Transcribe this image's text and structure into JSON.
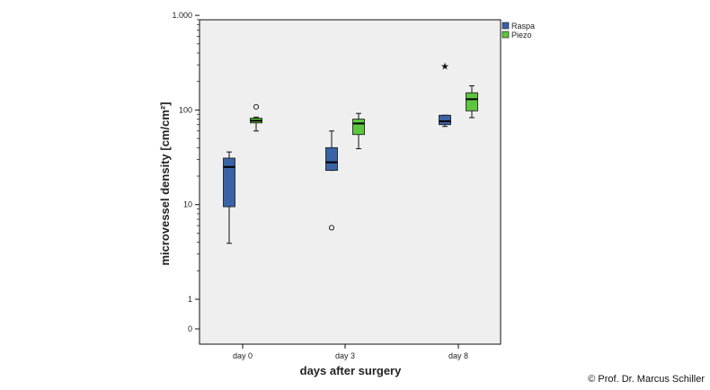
{
  "chart_data": {
    "type": "box",
    "title": "",
    "xlabel": "days after surgery",
    "ylabel": "microvessel density [cm/cm²]",
    "y_scale": "log, with 0 shown below 1",
    "y_ticks": [
      {
        "value": 0,
        "label": "0"
      },
      {
        "value": 1,
        "label": "1"
      },
      {
        "value": 10,
        "label": "10"
      },
      {
        "value": 100,
        "label": "100"
      },
      {
        "value": 1000,
        "label": "1.000"
      }
    ],
    "categories": [
      "day 0",
      "day 3",
      "day 8"
    ],
    "legend": {
      "placement": "top-right, outside plot"
    },
    "grid": false,
    "series": [
      {
        "name": "Raspa",
        "color": "#3a63a6",
        "boxes": [
          {
            "whisker_low": 3.9,
            "q1": 9.5,
            "median": 25,
            "q3": 31,
            "whisker_high": 36,
            "outliers": [],
            "extremes": []
          },
          {
            "whisker_low": 23,
            "q1": 23,
            "median": 28,
            "q3": 40,
            "whisker_high": 60,
            "outliers": [
              5.7
            ],
            "extremes": []
          },
          {
            "whisker_low": 67,
            "q1": 70,
            "median": 76,
            "q3": 88,
            "whisker_high": 88,
            "outliers": [],
            "extremes": [
              290
            ]
          }
        ]
      },
      {
        "name": "Piezo",
        "color": "#5ec53f",
        "boxes": [
          {
            "whisker_low": 60,
            "q1": 73,
            "median": 77,
            "q3": 82,
            "whisker_high": 84,
            "outliers": [
              108
            ],
            "extremes": []
          },
          {
            "whisker_low": 39,
            "q1": 55,
            "median": 72,
            "q3": 80,
            "whisker_high": 92,
            "outliers": [],
            "extremes": []
          },
          {
            "whisker_low": 83,
            "q1": 98,
            "median": 130,
            "q3": 152,
            "whisker_high": 180,
            "outliers": [],
            "extremes": []
          }
        ]
      }
    ],
    "plot_background": "#efefef"
  },
  "footer": {
    "copyright": "© Prof. Dr. Marcus Schiller"
  }
}
